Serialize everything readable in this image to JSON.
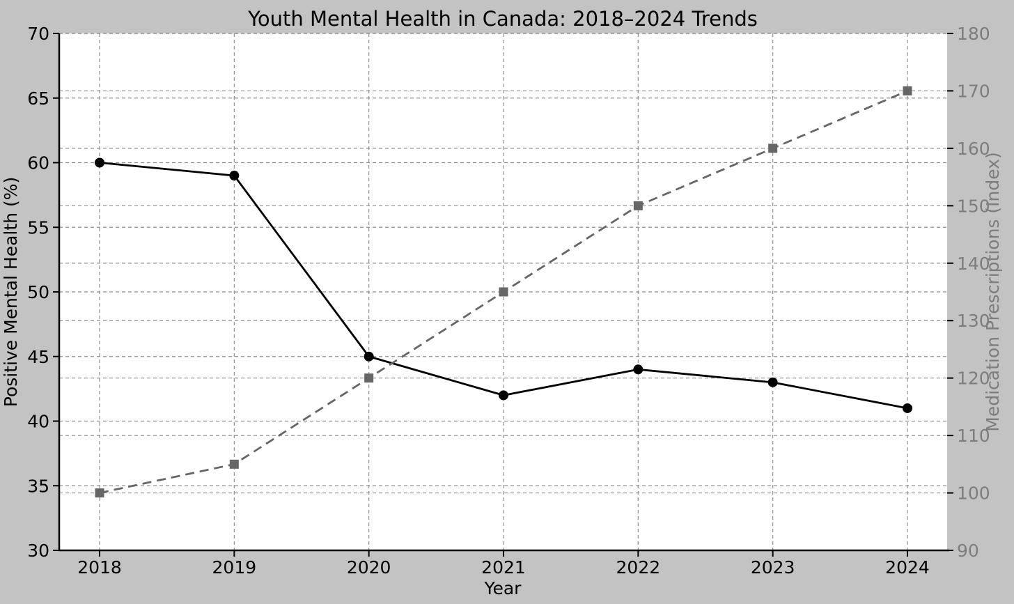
{
  "chart_data": {
    "type": "line",
    "title": "Youth Mental Health in Canada: 2018–2024 Trends",
    "xlabel": "Year",
    "x": [
      2018,
      2019,
      2020,
      2021,
      2022,
      2023,
      2024
    ],
    "series": [
      {
        "name": "Positive Mental Health (%)",
        "axis": "left",
        "values": [
          60,
          59,
          45,
          42,
          44,
          43,
          41
        ],
        "color": "#000000",
        "line_style": "solid",
        "marker": "circle"
      },
      {
        "name": "Medication Prescriptions (Index)",
        "axis": "right",
        "values": [
          100,
          105,
          120,
          135,
          150,
          160,
          170
        ],
        "color": "#666666",
        "line_style": "dashed",
        "marker": "square"
      }
    ],
    "axes": {
      "left": {
        "label": "Positive Mental Health (%)",
        "min": 30,
        "max": 70,
        "tick_step": 5,
        "tick_label_color": "#000000"
      },
      "right": {
        "label": "Medication Prescriptions (Index)",
        "min": 90,
        "max": 180,
        "tick_step": 10,
        "tick_label_color": "#7d7d7d"
      },
      "x": {
        "label": "Year",
        "tick_label_color": "#000000"
      }
    },
    "grid": true,
    "legend": false,
    "colors": {
      "figure_background": "#c3c3c3",
      "plot_background": "#ffffff",
      "gridline": "#8f8f8f",
      "spine": "#000000",
      "tick_mark": "#000000",
      "right_axis_text": "#7d7d7d"
    }
  }
}
